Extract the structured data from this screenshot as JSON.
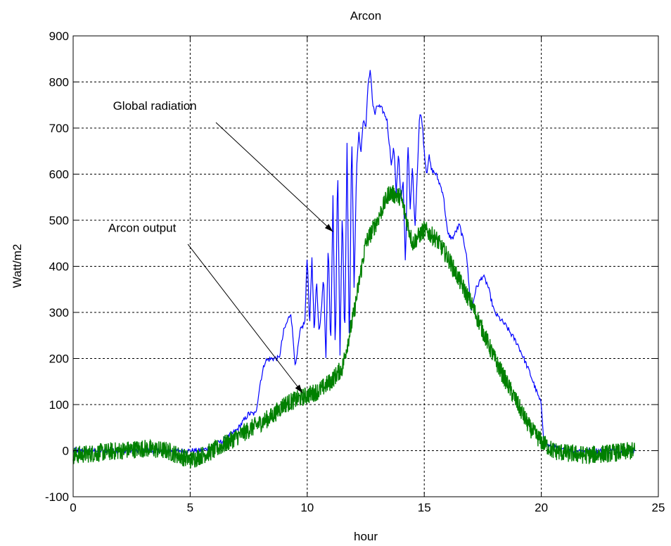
{
  "chart_data": {
    "type": "line",
    "title": "Arcon",
    "xlabel": "hour",
    "ylabel": "Watt/m2",
    "xlim": [
      0,
      25
    ],
    "ylim": [
      -100,
      900
    ],
    "xticks": [
      0,
      5,
      10,
      15,
      20,
      25
    ],
    "yticks": [
      -100,
      0,
      100,
      200,
      300,
      400,
      500,
      600,
      700,
      800,
      900
    ],
    "grid": true,
    "series": [
      {
        "name": "Global radiation",
        "color": "#0000ff",
        "x": [
          0,
          5.5,
          6,
          6.5,
          7,
          7.5,
          7.8,
          8.0,
          8.2,
          8.5,
          8.8,
          9.0,
          9.3,
          9.5,
          9.7,
          9.9,
          10.0,
          10.1,
          10.2,
          10.3,
          10.4,
          10.5,
          10.6,
          10.7,
          10.8,
          10.9,
          11.0,
          11.1,
          11.2,
          11.3,
          11.4,
          11.5,
          11.6,
          11.7,
          11.8,
          11.9,
          12.0,
          12.1,
          12.2,
          12.3,
          12.4,
          12.5,
          12.6,
          12.7,
          12.8,
          12.9,
          13.0,
          13.2,
          13.4,
          13.6,
          13.7,
          13.8,
          13.9,
          14.0,
          14.1,
          14.2,
          14.3,
          14.4,
          14.5,
          14.6,
          14.7,
          14.8,
          14.9,
          15.0,
          15.1,
          15.2,
          15.3,
          15.5,
          15.8,
          16.0,
          16.2,
          16.5,
          16.8,
          17.0,
          17.2,
          17.5,
          17.7,
          18.0,
          18.5,
          19.0,
          19.5,
          20.0,
          20.1,
          20.3,
          21.0,
          22.0,
          24.0
        ],
        "y": [
          0,
          0,
          10,
          25,
          45,
          80,
          80,
          150,
          195,
          200,
          200,
          260,
          300,
          180,
          260,
          280,
          430,
          270,
          420,
          250,
          370,
          260,
          300,
          380,
          200,
          460,
          220,
          550,
          200,
          630,
          210,
          530,
          230,
          670,
          210,
          700,
          350,
          600,
          690,
          650,
          720,
          700,
          790,
          830,
          750,
          730,
          750,
          740,
          720,
          620,
          660,
          560,
          650,
          540,
          580,
          400,
          680,
          520,
          620,
          480,
          600,
          730,
          720,
          650,
          600,
          640,
          610,
          600,
          560,
          470,
          460,
          490,
          430,
          300,
          350,
          380,
          360,
          300,
          270,
          230,
          170,
          100,
          30,
          10,
          0,
          0,
          0
        ]
      },
      {
        "name": "Arcon output",
        "color": "#008000",
        "x": [
          0,
          1,
          2,
          3,
          4,
          5,
          5.5,
          6,
          6.5,
          7,
          7.5,
          8,
          8.5,
          9,
          9.5,
          10,
          10.5,
          11,
          11.5,
          12,
          12.5,
          13,
          13.5,
          14,
          14.5,
          15,
          15.5,
          16,
          16.5,
          17,
          17.5,
          18,
          18.5,
          19,
          19.5,
          20,
          20.5,
          21,
          22,
          23,
          24
        ],
        "y": [
          -10,
          -5,
          0,
          5,
          0,
          -20,
          -10,
          0,
          15,
          30,
          45,
          60,
          75,
          100,
          110,
          120,
          130,
          150,
          180,
          300,
          450,
          500,
          560,
          550,
          450,
          480,
          460,
          420,
          370,
          320,
          260,
          200,
          150,
          100,
          50,
          20,
          0,
          -5,
          -10,
          -5,
          0
        ]
      }
    ],
    "annotations": [
      {
        "text": "Global radiation",
        "text_at": [
          1.7,
          740
        ],
        "arrow_from": [
          6.1,
          712
        ],
        "arrow_to": [
          11.1,
          475
        ]
      },
      {
        "text": "Arcon output",
        "text_at": [
          1.5,
          475
        ],
        "arrow_from": [
          4.9,
          448
        ],
        "arrow_to": [
          9.8,
          125
        ]
      }
    ]
  }
}
